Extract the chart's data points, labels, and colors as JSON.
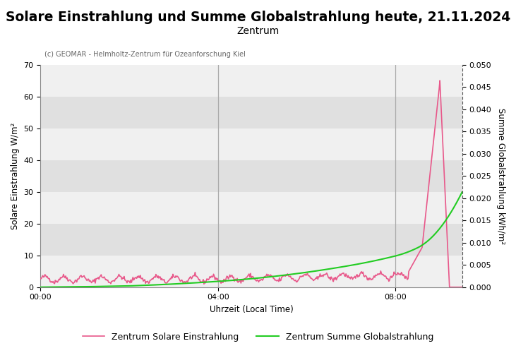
{
  "title": "Solare Einstrahlung und Summe Globalstrahlung heute, 21.11.2024",
  "subtitle": "Zentrum",
  "copyright_text": "(c) GEOMAR - Helmholtz-Zentrum für Ozeanforschung Kiel",
  "xlabel": "Uhrzeit (Local Time)",
  "ylabel_left": "Solare Einstrahlung W/m²",
  "ylabel_right": "Summe Globalstrahlung kWh/m²",
  "ylim_left": [
    0,
    70
  ],
  "ylim_right": [
    0,
    0.05
  ],
  "yticks_left": [
    0,
    10,
    20,
    30,
    40,
    50,
    60,
    70
  ],
  "yticks_right": [
    0.0,
    0.005,
    0.01,
    0.015,
    0.02,
    0.025,
    0.03,
    0.035,
    0.04,
    0.045,
    0.05
  ],
  "xticks_hours": [
    0,
    4,
    8
  ],
  "xlim_min": 0,
  "xlim_max": 570,
  "vline_hours": [
    4,
    8
  ],
  "color_solar": "#e8588a",
  "color_global": "#22cc22",
  "color_background": "#e0e0e0",
  "color_stripe": "#f0f0f0",
  "legend_label_solar": "Zentrum Solare Einstrahlung",
  "legend_label_global": "Zentrum Summe Globalstrahlung",
  "title_fontsize": 13.5,
  "subtitle_fontsize": 10,
  "axis_fontsize": 8.5,
  "tick_fontsize": 8,
  "copyright_fontsize": 7,
  "legend_fontsize": 9
}
